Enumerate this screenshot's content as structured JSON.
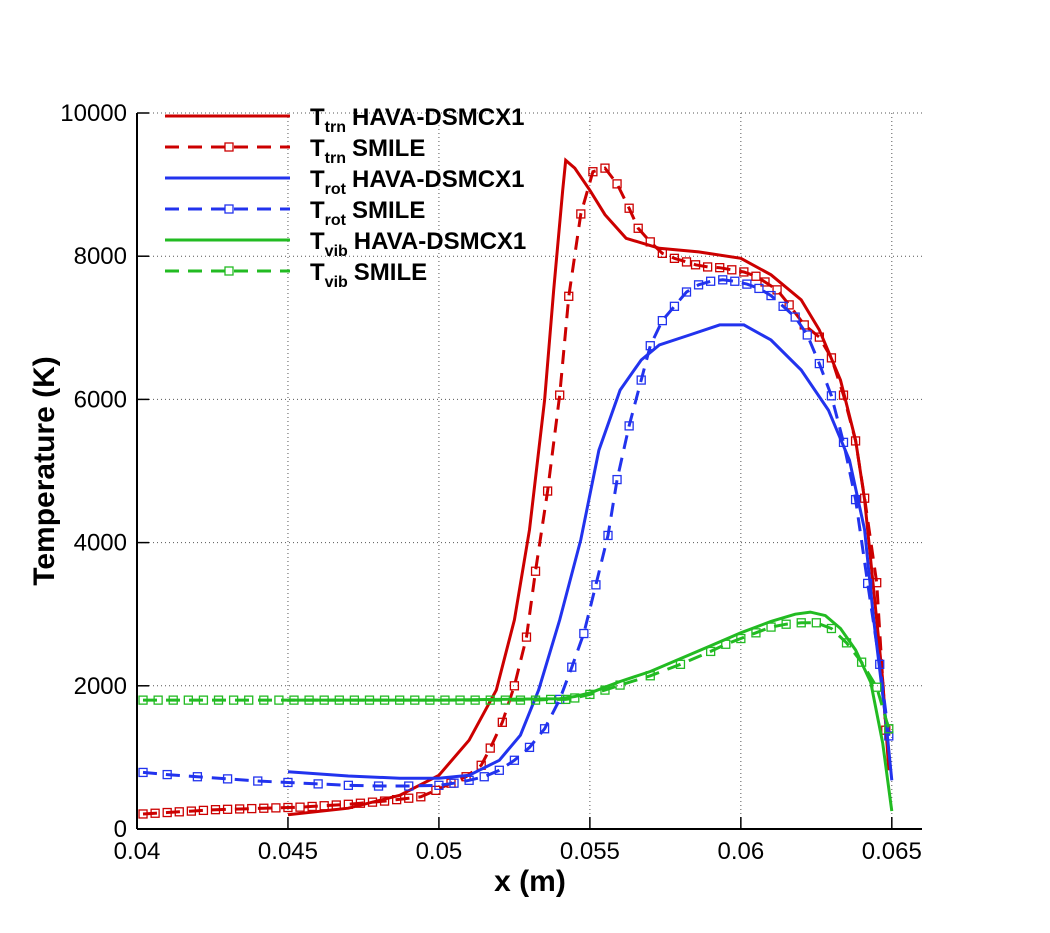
{
  "chart_data": {
    "type": "line",
    "xlabel": "x (m)",
    "ylabel": "Temperature (K)",
    "xlim": [
      0.04,
      0.066
    ],
    "ylim": [
      0,
      10000
    ],
    "xticks": [
      0.04,
      0.045,
      0.05,
      0.055,
      0.06,
      0.065
    ],
    "yticks": [
      0,
      2000,
      4000,
      6000,
      8000,
      10000
    ],
    "grid": true,
    "legend": "upper left",
    "series": [
      {
        "symbol": "T",
        "subscript": "trn",
        "name": "HAVA-DSMCX1",
        "color": "#cc0000",
        "style": "solid",
        "x": [
          0.045,
          0.047,
          0.0487,
          0.05,
          0.051,
          0.0519,
          0.0525,
          0.053,
          0.0535,
          0.0538,
          0.0541,
          0.0542,
          0.0545,
          0.055,
          0.0555,
          0.0562,
          0.0573,
          0.0586,
          0.06,
          0.061,
          0.062,
          0.0626,
          0.0633,
          0.0638,
          0.0641,
          0.0644,
          0.0647,
          0.0649
        ],
        "values": [
          200,
          290,
          470,
          750,
          1240,
          1940,
          2920,
          4180,
          5990,
          7530,
          8920,
          9340,
          9230,
          8920,
          8580,
          8250,
          8110,
          8060,
          7970,
          7740,
          7390,
          6970,
          6270,
          5430,
          4600,
          3340,
          2080,
          820
        ]
      },
      {
        "symbol": "T",
        "subscript": "trn",
        "name": "SMILE",
        "color": "#cc0000",
        "style": "dashed",
        "x": [
          0.0402,
          0.0406,
          0.041,
          0.0414,
          0.0418,
          0.0422,
          0.0426,
          0.043,
          0.0434,
          0.0438,
          0.0442,
          0.0446,
          0.045,
          0.0454,
          0.0458,
          0.0462,
          0.0466,
          0.047,
          0.0474,
          0.0478,
          0.0482,
          0.0486,
          0.049,
          0.0494,
          0.0499,
          0.0504,
          0.0509,
          0.0514,
          0.0517,
          0.0521,
          0.0525,
          0.0529,
          0.0532,
          0.0536,
          0.054,
          0.0543,
          0.0547,
          0.0551,
          0.0555,
          0.0559,
          0.0563,
          0.0566,
          0.057,
          0.0574,
          0.0578,
          0.0582,
          0.0585,
          0.0589,
          0.0593,
          0.0597,
          0.0601,
          0.0605,
          0.0608,
          0.0612,
          0.0616,
          0.0621,
          0.0626,
          0.063,
          0.0634,
          0.0638,
          0.0641,
          0.0645,
          0.0648
        ],
        "values": [
          210,
          220,
          230,
          240,
          250,
          260,
          270,
          275,
          280,
          285,
          290,
          295,
          300,
          305,
          315,
          325,
          335,
          345,
          360,
          375,
          390,
          410,
          430,
          450,
          540,
          640,
          730,
          890,
          1130,
          1490,
          2000,
          2680,
          3600,
          4720,
          6060,
          7440,
          8590,
          9180,
          9230,
          9010,
          8670,
          8390,
          8200,
          8040,
          7970,
          7920,
          7880,
          7850,
          7840,
          7810,
          7780,
          7720,
          7640,
          7530,
          7320,
          7040,
          6870,
          6580,
          6060,
          5420,
          4620,
          3440,
          1380
        ]
      },
      {
        "symbol": "T",
        "subscript": "rot",
        "name": "HAVA-DSMCX1",
        "color": "#2233ee",
        "style": "solid",
        "x": [
          0.045,
          0.047,
          0.0487,
          0.05,
          0.051,
          0.052,
          0.0527,
          0.0533,
          0.054,
          0.0547,
          0.0553,
          0.056,
          0.0567,
          0.0573,
          0.0583,
          0.0593,
          0.0601,
          0.061,
          0.062,
          0.0629,
          0.0636,
          0.0641,
          0.0644,
          0.0648,
          0.065
        ],
        "values": [
          800,
          740,
          710,
          710,
          750,
          960,
          1310,
          1940,
          2920,
          4040,
          5290,
          6130,
          6550,
          6760,
          6900,
          7040,
          7040,
          6830,
          6410,
          5850,
          5150,
          4180,
          2920,
          1520,
          680
        ]
      },
      {
        "symbol": "T",
        "subscript": "rot",
        "name": "SMILE",
        "color": "#2233ee",
        "style": "dashed",
        "x": [
          0.0402,
          0.041,
          0.042,
          0.043,
          0.044,
          0.045,
          0.046,
          0.047,
          0.048,
          0.049,
          0.05,
          0.0505,
          0.051,
          0.0515,
          0.052,
          0.0525,
          0.053,
          0.0535,
          0.054,
          0.0544,
          0.0548,
          0.0552,
          0.0556,
          0.0559,
          0.0563,
          0.0567,
          0.057,
          0.0574,
          0.0578,
          0.0582,
          0.0586,
          0.059,
          0.0594,
          0.0598,
          0.0602,
          0.0606,
          0.061,
          0.0614,
          0.0618,
          0.0622,
          0.0626,
          0.063,
          0.0634,
          0.0638,
          0.0642,
          0.0646,
          0.0649
        ],
        "values": [
          790,
          760,
          730,
          700,
          670,
          650,
          630,
          610,
          600,
          600,
          610,
          640,
          680,
          730,
          820,
          960,
          1140,
          1400,
          1810,
          2260,
          2730,
          3410,
          4100,
          4880,
          5630,
          6270,
          6750,
          7100,
          7300,
          7500,
          7600,
          7650,
          7670,
          7650,
          7610,
          7550,
          7450,
          7300,
          7150,
          6900,
          6500,
          6050,
          5400,
          4600,
          3430,
          2300,
          1300
        ]
      },
      {
        "symbol": "T",
        "subscript": "vib",
        "name": "HAVA-DSMCX1",
        "color": "#22bb22",
        "style": "solid",
        "x": [
          0.045,
          0.05,
          0.054,
          0.0545,
          0.055,
          0.0555,
          0.056,
          0.057,
          0.058,
          0.059,
          0.06,
          0.061,
          0.0618,
          0.0623,
          0.0628,
          0.0633,
          0.0638,
          0.0643,
          0.0647,
          0.065
        ],
        "values": [
          1800,
          1800,
          1820,
          1850,
          1900,
          1980,
          2060,
          2200,
          2380,
          2560,
          2740,
          2900,
          3000,
          3030,
          2980,
          2800,
          2500,
          2050,
          1200,
          250
        ]
      },
      {
        "symbol": "T",
        "subscript": "vib",
        "name": "SMILE",
        "color": "#22bb22",
        "style": "dashed",
        "x": [
          0.0402,
          0.0407,
          0.0412,
          0.0417,
          0.0422,
          0.0427,
          0.0432,
          0.0437,
          0.0442,
          0.0447,
          0.0452,
          0.0457,
          0.0462,
          0.0467,
          0.0472,
          0.0477,
          0.0482,
          0.0487,
          0.0492,
          0.0497,
          0.0502,
          0.0507,
          0.0512,
          0.0517,
          0.0522,
          0.0527,
          0.0532,
          0.0537,
          0.0542,
          0.0545,
          0.055,
          0.0555,
          0.056,
          0.057,
          0.058,
          0.059,
          0.0595,
          0.06,
          0.0605,
          0.061,
          0.0615,
          0.062,
          0.0625,
          0.063,
          0.0635,
          0.064,
          0.0645,
          0.0649
        ],
        "values": [
          1800,
          1800,
          1800,
          1800,
          1800,
          1800,
          1800,
          1800,
          1800,
          1800,
          1800,
          1800,
          1800,
          1800,
          1800,
          1800,
          1800,
          1800,
          1800,
          1800,
          1800,
          1800,
          1800,
          1800,
          1800,
          1800,
          1800,
          1810,
          1810,
          1830,
          1880,
          1940,
          2010,
          2140,
          2300,
          2480,
          2580,
          2660,
          2740,
          2820,
          2860,
          2880,
          2880,
          2800,
          2600,
          2330,
          1980,
          1400
        ]
      }
    ]
  }
}
